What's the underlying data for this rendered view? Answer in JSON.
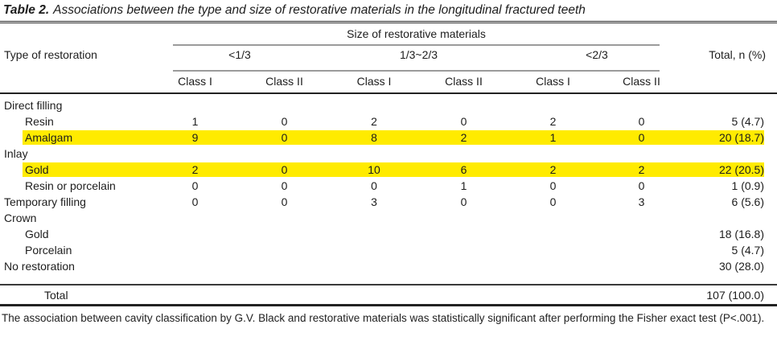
{
  "title": {
    "label": "Table 2.",
    "text": "Associations between the type and size of restorative materials in the longitudinal fractured teeth"
  },
  "header": {
    "row_header": "Type of restoration",
    "span_header": "Size of restorative materials",
    "size_groups": [
      "<1/3",
      "1/3~2/3",
      "<2/3"
    ],
    "class_headers": [
      "Class I",
      "Class II",
      "Class I",
      "Class II",
      "Class I",
      "Class II"
    ],
    "total_header": "Total, n (%)"
  },
  "table": {
    "rows": [
      {
        "label": "Direct filling",
        "cells": [
          "",
          "",
          "",
          "",
          "",
          ""
        ],
        "total": ""
      },
      {
        "label": "Resin",
        "cells": [
          "1",
          "0",
          "2",
          "0",
          "2",
          "0"
        ],
        "total": "5 (4.7)"
      },
      {
        "label": "Amalgam",
        "cells": [
          "9",
          "0",
          "8",
          "2",
          "1",
          "0"
        ],
        "total": "20 (18.7)"
      },
      {
        "label": "Inlay",
        "cells": [
          "",
          "",
          "",
          "",
          "",
          ""
        ],
        "total": ""
      },
      {
        "label": "Gold",
        "cells": [
          "2",
          "0",
          "10",
          "6",
          "2",
          "2"
        ],
        "total": "22 (20.5)"
      },
      {
        "label": "Resin or porcelain",
        "cells": [
          "0",
          "0",
          "0",
          "1",
          "0",
          "0"
        ],
        "total": "1 (0.9)"
      },
      {
        "label": "Temporary filling",
        "cells": [
          "0",
          "0",
          "3",
          "0",
          "0",
          "3"
        ],
        "total": "6 (5.6)"
      },
      {
        "label": "Crown",
        "cells": [
          "",
          "",
          "",
          "",
          "",
          ""
        ],
        "total": ""
      },
      {
        "label": "Gold",
        "cells": [
          "",
          "",
          "",
          "",
          "",
          ""
        ],
        "total": "18 (16.8)"
      },
      {
        "label": "Porcelain",
        "cells": [
          "",
          "",
          "",
          "",
          "",
          ""
        ],
        "total": "5 (4.7)"
      },
      {
        "label": "No restoration",
        "cells": [
          "",
          "",
          "",
          "",
          "",
          ""
        ],
        "total": "30 (28.0)"
      }
    ],
    "total_row": {
      "label": "Total",
      "value": "107 (100.0)"
    }
  },
  "footnote": "The association between cavity classification by G.V. Black and restorative materials was statistically significant after performing the Fisher exact test (P<.001).",
  "colors": {
    "highlight": "#ffeb00",
    "gray_rule": "#9b9b9b"
  }
}
